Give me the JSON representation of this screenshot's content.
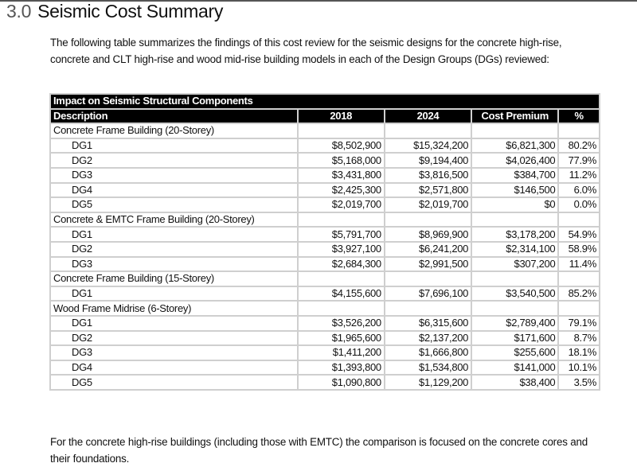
{
  "heading": {
    "number": "3.0",
    "title": "Seismic Cost Summary"
  },
  "intro": "The following table summarizes the findings of this cost review for the seismic designs for the concrete high-rise, concrete and CLT high-rise and wood mid-rise building models in each of the Design Groups (DGs) reviewed:",
  "table": {
    "caption": "Impact on Seismic Structural Components",
    "columns": [
      "Description",
      "2018",
      "2024",
      "Cost Premium",
      "%"
    ],
    "groups": [
      {
        "name": "Concrete Frame Building (20-Storey)",
        "rows": [
          [
            "DG1",
            "$8,502,900",
            "$15,324,200",
            "$6,821,300",
            "80.2%"
          ],
          [
            "DG2",
            "$5,168,000",
            "$9,194,400",
            "$4,026,400",
            "77.9%"
          ],
          [
            "DG3",
            "$3,431,800",
            "$3,816,500",
            "$384,700",
            "11.2%"
          ],
          [
            "DG4",
            "$2,425,300",
            "$2,571,800",
            "$146,500",
            "6.0%"
          ],
          [
            "DG5",
            "$2,019,700",
            "$2,019,700",
            "$0",
            "0.0%"
          ]
        ]
      },
      {
        "name": "Concrete & EMTC Frame Building (20-Storey)",
        "rows": [
          [
            "DG1",
            "$5,791,700",
            "$8,969,900",
            "$3,178,200",
            "54.9%"
          ],
          [
            "DG2",
            "$3,927,100",
            "$6,241,200",
            "$2,314,100",
            "58.9%"
          ],
          [
            "DG3",
            "$2,684,300",
            "$2,991,500",
            "$307,200",
            "11.4%"
          ]
        ]
      },
      {
        "name": "Concrete Frame Building (15-Storey)",
        "rows": [
          [
            "DG1",
            "$4,155,600",
            "$7,696,100",
            "$3,540,500",
            "85.2%"
          ]
        ]
      },
      {
        "name": "Wood Frame Midrise (6-Storey)",
        "rows": [
          [
            "DG1",
            "$3,526,200",
            "$6,315,600",
            "$2,789,400",
            "79.1%"
          ],
          [
            "DG2",
            "$1,965,600",
            "$2,137,200",
            "$171,600",
            "8.7%"
          ],
          [
            "DG3",
            "$1,411,200",
            "$1,666,800",
            "$255,600",
            "18.1%"
          ],
          [
            "DG4",
            "$1,393,800",
            "$1,534,800",
            "$141,000",
            "10.1%"
          ],
          [
            "DG5",
            "$1,090,800",
            "$1,129,200",
            "$38,400",
            "3.5%"
          ]
        ]
      }
    ]
  },
  "outro": "For the concrete high-rise buildings (including those with EMTC) the comparison is focused on the concrete cores and their foundations."
}
